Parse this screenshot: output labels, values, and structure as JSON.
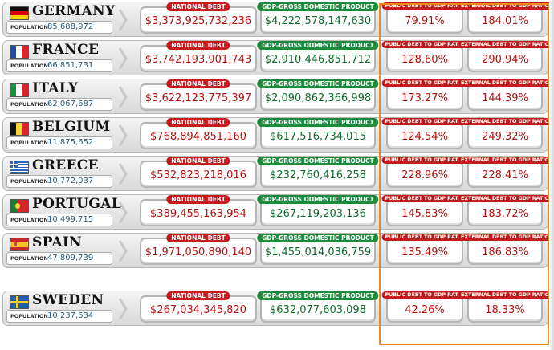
{
  "labels": {
    "population": "POPULATION",
    "national_debt": "NATIONAL DEBT",
    "gdp": "GDP-GROSS DOMESTIC PRODUCT",
    "public_ratio": "PUBLIC DEBT TO GDP RATIO",
    "external_ratio": "EXTERNAL DEBT TO GDP RATIO"
  },
  "colors": {
    "debt_red": "#c21d1d",
    "gdp_green": "#1e8a3c",
    "highlight_orange": "#f08a1c"
  },
  "countries": [
    {
      "name": "GERMANY",
      "flag": "germany",
      "population": "85,688,972",
      "debt": "$3,373,925,732,236",
      "gdp": "$4,222,578,147,630",
      "public_ratio": "79.91%",
      "external_ratio": "184.01%"
    },
    {
      "name": "FRANCE",
      "flag": "france",
      "population": "66,851,731",
      "debt": "$3,742,193,901,743",
      "gdp": "$2,910,446,851,712",
      "public_ratio": "128.60%",
      "external_ratio": "290.94%"
    },
    {
      "name": "ITALY",
      "flag": "italy",
      "population": "62,067,687",
      "debt": "$3,622,123,775,397",
      "gdp": "$2,090,862,366,998",
      "public_ratio": "173.27%",
      "external_ratio": "144.39%"
    },
    {
      "name": "BELGIUM",
      "flag": "belgium",
      "population": "11,875,652",
      "debt": "$768,894,851,160",
      "gdp": "$617,516,734,015",
      "public_ratio": "124.54%",
      "external_ratio": "249.32%"
    },
    {
      "name": "GREECE",
      "flag": "greece",
      "population": "10,772,037",
      "debt": "$532,823,218,016",
      "gdp": "$232,760,416,258",
      "public_ratio": "228.96%",
      "external_ratio": "228.41%"
    },
    {
      "name": "PORTUGAL",
      "flag": "portugal",
      "population": "10,499,715",
      "debt": "$389,455,163,954",
      "gdp": "$267,119,203,136",
      "public_ratio": "145.83%",
      "external_ratio": "183.72%"
    },
    {
      "name": "SPAIN",
      "flag": "spain",
      "population": "47,809,739",
      "debt": "$1,971,050,890,140",
      "gdp": "$1,455,014,036,759",
      "public_ratio": "135.49%",
      "external_ratio": "186.83%"
    },
    {
      "name": "SWEDEN",
      "flag": "sweden",
      "population": "10,237,634",
      "debt": "$267,034,345,820",
      "gdp": "$632,077,603,098",
      "public_ratio": "42.26%",
      "external_ratio": "18.33%"
    }
  ]
}
